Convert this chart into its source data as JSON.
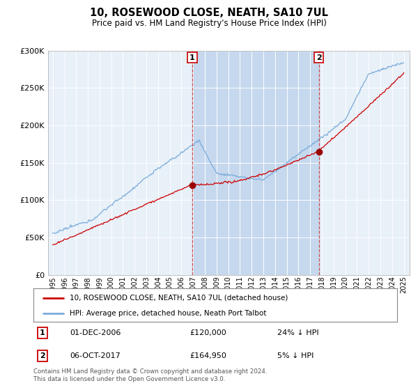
{
  "title": "10, ROSEWOOD CLOSE, NEATH, SA10 7UL",
  "subtitle": "Price paid vs. HM Land Registry's House Price Index (HPI)",
  "background_color": "#ffffff",
  "plot_bg_color": "#dce8f5",
  "shade_color": "#c8dcf0",
  "legend_label_red": "10, ROSEWOOD CLOSE, NEATH, SA10 7UL (detached house)",
  "legend_label_blue": "HPI: Average price, detached house, Neath Port Talbot",
  "annotation1_label": "1",
  "annotation1_date": "01-DEC-2006",
  "annotation1_price": "£120,000",
  "annotation1_hpi": "24% ↓ HPI",
  "annotation2_label": "2",
  "annotation2_date": "06-OCT-2017",
  "annotation2_price": "£164,950",
  "annotation2_hpi": "5% ↓ HPI",
  "footer": "Contains HM Land Registry data © Crown copyright and database right 2024.\nThis data is licensed under the Open Government Licence v3.0.",
  "red_color": "#cc0000",
  "blue_color": "#7aabdb",
  "vline_color": "#cc3333",
  "marker_color": "#990000",
  "annotation_box_color": "#cc0000",
  "ylim": [
    0,
    300000
  ],
  "yticks": [
    0,
    50000,
    100000,
    150000,
    200000,
    250000,
    300000
  ],
  "year_start": 1995,
  "year_end": 2025,
  "sale1_year": 2006.917,
  "sale1_price": 120000,
  "sale2_year": 2017.75,
  "sale2_price": 164950
}
